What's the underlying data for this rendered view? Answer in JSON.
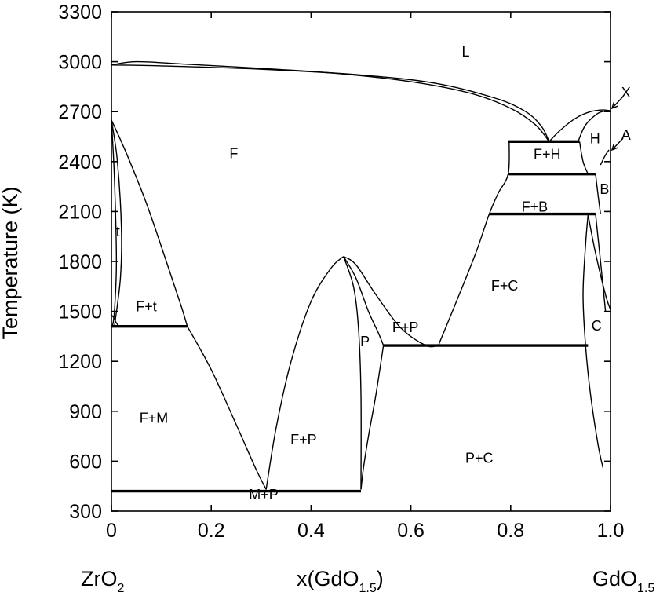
{
  "chart_data": {
    "type": "line",
    "title": "",
    "ylabel": "Temperature (K)",
    "xlabel_prefix": "x(GdO",
    "xlabel_sub": "1.5",
    "xlabel_suffix": ")",
    "left_component": {
      "base": "ZrO",
      "sub": "2"
    },
    "right_component": {
      "base": "GdO",
      "sub": "1.5"
    },
    "xlim": [
      0,
      1.0
    ],
    "ylim": [
      300,
      3300
    ],
    "x_ticks": [
      0,
      0.2,
      0.4,
      0.6,
      0.8,
      1.0
    ],
    "x_tick_labels": [
      "0",
      "0.2",
      "0.4",
      "0.6",
      "0.8",
      "1.0"
    ],
    "y_ticks": [
      300,
      600,
      900,
      1200,
      1500,
      1800,
      2100,
      2400,
      2700,
      3000,
      3300
    ],
    "y_tick_labels": [
      "300",
      "600",
      "900",
      "1200",
      "1500",
      "1800",
      "2100",
      "2400",
      "2700",
      "3000",
      "3300"
    ],
    "regions": [
      {
        "label": "L",
        "x": 0.71,
        "y": 3030
      },
      {
        "label": "F",
        "x": 0.245,
        "y": 2420
      },
      {
        "label": "t",
        "x": 0.013,
        "y": 1950
      },
      {
        "label": "F+t",
        "x": 0.07,
        "y": 1500
      },
      {
        "label": "F+M",
        "x": 0.085,
        "y": 830
      },
      {
        "label": "F+P",
        "x": 0.385,
        "y": 700
      },
      {
        "label": "M+P",
        "x": 0.305,
        "y": 370
      },
      {
        "label": "P",
        "x": 0.508,
        "y": 1290
      },
      {
        "label": "F+P",
        "x": 0.589,
        "y": 1375
      },
      {
        "label": "F+C",
        "x": 0.788,
        "y": 1625
      },
      {
        "label": "P+C",
        "x": 0.737,
        "y": 590
      },
      {
        "label": "F+H",
        "x": 0.873,
        "y": 2415
      },
      {
        "label": "F+B",
        "x": 0.848,
        "y": 2100
      },
      {
        "label": "H",
        "x": 0.969,
        "y": 2510
      },
      {
        "label": "B",
        "x": 0.988,
        "y": 2205
      },
      {
        "label": "C",
        "x": 0.972,
        "y": 1385
      },
      {
        "label": "X",
        "x": 1.031,
        "y": 2785
      },
      {
        "label": "A",
        "x": 1.031,
        "y": 2530
      }
    ],
    "invariant_lines": [
      {
        "x1": 0.0,
        "x2": 0.152,
        "y": 1410
      },
      {
        "x1": 0.0,
        "x2": 0.5,
        "y": 420
      },
      {
        "x1": 0.545,
        "x2": 0.955,
        "y": 1295
      },
      {
        "x1": 0.795,
        "x2": 0.938,
        "y": 2520
      },
      {
        "x1": 0.795,
        "x2": 0.97,
        "y": 2325
      },
      {
        "x1": 0.757,
        "x2": 0.97,
        "y": 2085
      }
    ],
    "boundaries": [
      {
        "name": "liquidus-left",
        "points": [
          [
            0,
            2980
          ],
          [
            0.05,
            3000
          ],
          [
            0.15,
            2985
          ],
          [
            0.3,
            2960
          ],
          [
            0.45,
            2930
          ],
          [
            0.6,
            2880
          ],
          [
            0.72,
            2810
          ],
          [
            0.8,
            2720
          ],
          [
            0.85,
            2620
          ],
          [
            0.877,
            2520
          ]
        ]
      },
      {
        "name": "solidus-left",
        "points": [
          [
            0,
            2980
          ],
          [
            0.1,
            2975
          ],
          [
            0.3,
            2955
          ],
          [
            0.5,
            2920
          ],
          [
            0.65,
            2870
          ],
          [
            0.77,
            2780
          ],
          [
            0.83,
            2700
          ],
          [
            0.862,
            2610
          ],
          [
            0.877,
            2520
          ]
        ]
      },
      {
        "name": "liquidus-right",
        "points": [
          [
            0.877,
            2520
          ],
          [
            0.9,
            2590
          ],
          [
            0.93,
            2660
          ],
          [
            0.96,
            2700
          ],
          [
            0.985,
            2710
          ],
          [
            1.0,
            2705
          ]
        ]
      },
      {
        "name": "h-boundary-top",
        "points": [
          [
            0.935,
            2520
          ],
          [
            0.95,
            2620
          ],
          [
            0.975,
            2690
          ],
          [
            0.995,
            2705
          ]
        ]
      },
      {
        "name": "t-left",
        "points": [
          [
            0,
            2650
          ],
          [
            0.006,
            2300
          ],
          [
            0.01,
            1800
          ],
          [
            0.006,
            1500
          ],
          [
            0.002,
            1410
          ]
        ]
      },
      {
        "name": "t-right",
        "points": [
          [
            0,
            2650
          ],
          [
            0.012,
            2400
          ],
          [
            0.02,
            2000
          ],
          [
            0.018,
            1700
          ],
          [
            0.006,
            1410
          ]
        ]
      },
      {
        "name": "f-t-boundary",
        "points": [
          [
            0,
            2650
          ],
          [
            0.03,
            2450
          ],
          [
            0.07,
            2150
          ],
          [
            0.11,
            1800
          ],
          [
            0.14,
            1530
          ],
          [
            0.152,
            1410
          ]
        ]
      },
      {
        "name": "small-step",
        "points": [
          [
            0,
            1480
          ],
          [
            0.005,
            1460
          ],
          [
            0.01,
            1430
          ],
          [
            0.015,
            1410
          ]
        ]
      },
      {
        "name": "f-m-boundary",
        "points": [
          [
            0.152,
            1410
          ],
          [
            0.2,
            1150
          ],
          [
            0.25,
            820
          ],
          [
            0.29,
            550
          ],
          [
            0.31,
            430
          ]
        ]
      },
      {
        "name": "f-p-left",
        "points": [
          [
            0.31,
            430
          ],
          [
            0.33,
            800
          ],
          [
            0.36,
            1200
          ],
          [
            0.4,
            1560
          ],
          [
            0.44,
            1760
          ],
          [
            0.465,
            1830
          ]
        ]
      },
      {
        "name": "f-p-right",
        "points": [
          [
            0.465,
            1830
          ],
          [
            0.49,
            1780
          ],
          [
            0.53,
            1600
          ],
          [
            0.58,
            1400
          ],
          [
            0.63,
            1295
          ],
          [
            0.655,
            1295
          ]
        ]
      },
      {
        "name": "p-left",
        "points": [
          [
            0.465,
            1830
          ],
          [
            0.485,
            1650
          ],
          [
            0.495,
            1400
          ],
          [
            0.5,
            1000
          ],
          [
            0.5,
            430
          ]
        ]
      },
      {
        "name": "p-right",
        "points": [
          [
            0.465,
            1830
          ],
          [
            0.49,
            1700
          ],
          [
            0.515,
            1500
          ],
          [
            0.535,
            1370
          ],
          [
            0.545,
            1295
          ]
        ]
      },
      {
        "name": "p-lower-right",
        "points": [
          [
            0.545,
            1295
          ],
          [
            0.53,
            1000
          ],
          [
            0.515,
            750
          ],
          [
            0.505,
            560
          ],
          [
            0.5,
            430
          ]
        ]
      },
      {
        "name": "f-c-boundary",
        "points": [
          [
            0.655,
            1295
          ],
          [
            0.69,
            1550
          ],
          [
            0.73,
            1850
          ],
          [
            0.757,
            2085
          ],
          [
            0.775,
            2210
          ],
          [
            0.795,
            2325
          ],
          [
            0.797,
            2520
          ]
        ]
      },
      {
        "name": "h-b-left",
        "points": [
          [
            0.938,
            2520
          ],
          [
            0.945,
            2400
          ],
          [
            0.955,
            2325
          ]
        ]
      },
      {
        "name": "c-left",
        "points": [
          [
            0.955,
            2080
          ],
          [
            0.95,
            1900
          ],
          [
            0.945,
            1600
          ],
          [
            0.95,
            1295
          ],
          [
            0.96,
            1000
          ],
          [
            0.975,
            700
          ],
          [
            0.985,
            560
          ]
        ]
      },
      {
        "name": "c-right",
        "points": [
          [
            0.97,
            2085
          ],
          [
            0.98,
            1800
          ],
          [
            0.99,
            1500
          ]
        ]
      },
      {
        "name": "b-right",
        "points": [
          [
            0.97,
            2325
          ],
          [
            0.975,
            2200
          ],
          [
            0.98,
            2085
          ]
        ]
      },
      {
        "name": "b-c-boundary",
        "points": [
          [
            0.955,
            2080
          ],
          [
            0.97,
            1850
          ],
          [
            0.99,
            1600
          ],
          [
            1.0,
            1510
          ]
        ]
      },
      {
        "name": "a-x-line",
        "points": [
          [
            0.98,
            2380
          ],
          [
            0.99,
            2440
          ],
          [
            0.997,
            2470
          ]
        ]
      }
    ],
    "arrows": [
      {
        "from": [
          1.025,
          2790
        ],
        "to": [
          1.003,
          2720
        ]
      },
      {
        "from": [
          1.025,
          2540
        ],
        "to": [
          1.003,
          2470
        ]
      }
    ]
  }
}
